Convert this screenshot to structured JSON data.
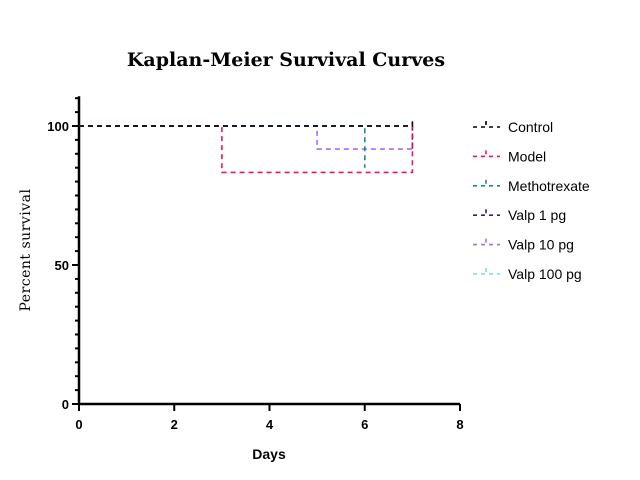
{
  "chart_data": {
    "type": "line",
    "title": "Kaplan-Meier Survival Curves",
    "xlabel": "Days",
    "ylabel": "Percent survival",
    "xlim": [
      0,
      8
    ],
    "ylim": [
      0,
      110
    ],
    "xticks": [
      0,
      2,
      4,
      6,
      8
    ],
    "yticks": [
      0,
      50,
      100
    ],
    "grid": false,
    "legend_position": "right",
    "series": [
      {
        "name": "Control",
        "color": "#000000",
        "x": [
          0,
          7,
          7
        ],
        "y": [
          100,
          100,
          102
        ]
      },
      {
        "name": "Model",
        "color": "#e8175d",
        "x": [
          0,
          3,
          3,
          7,
          7
        ],
        "y": [
          100,
          100,
          83.3,
          83.3,
          100
        ]
      },
      {
        "name": "Methotrexate",
        "color": "#1b8a80",
        "x": [
          0,
          6,
          6
        ],
        "y": [
          100,
          100,
          85
        ]
      },
      {
        "name": "Valp 1 pg",
        "color": "#3b1a78",
        "x": [
          0,
          7,
          7
        ],
        "y": [
          100,
          100,
          91.7
        ]
      },
      {
        "name": "Valp 10 pg",
        "color": "#a86cf0",
        "x": [
          0,
          5,
          5,
          7
        ],
        "y": [
          100,
          100,
          91.7,
          91.7
        ]
      },
      {
        "name": "Valp 100 pg",
        "color": "#7fd3ea",
        "x": [
          0,
          7
        ],
        "y": [
          100,
          100
        ]
      }
    ]
  }
}
